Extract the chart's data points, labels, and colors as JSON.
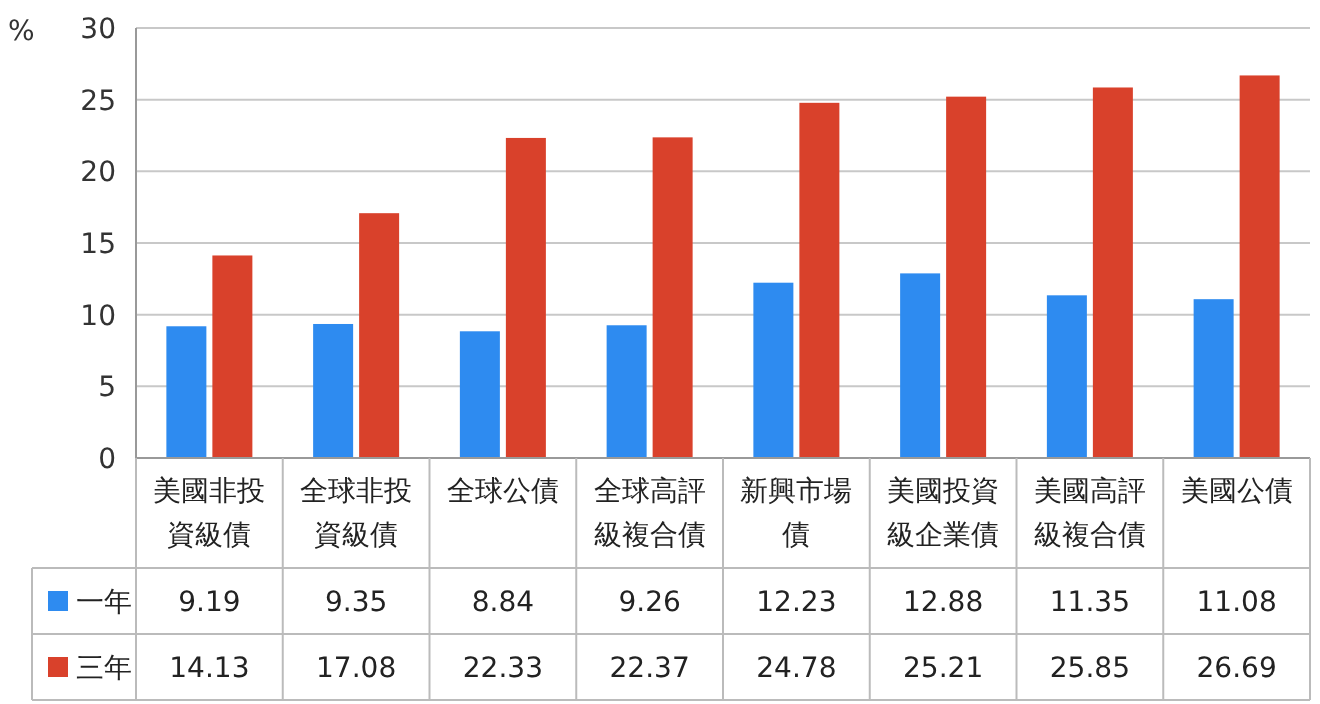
{
  "chart_data": {
    "type": "bar",
    "ylabel": "%",
    "ylim": [
      0,
      30
    ],
    "yticks": [
      0,
      5,
      10,
      15,
      20,
      25,
      30
    ],
    "grid": "y",
    "data_labels": true,
    "legend": "bottom",
    "categories": [
      "美國非投資級債",
      "全球非投資級債",
      "全球公債",
      "全球高評級複合債",
      "新興市場債",
      "美國投資級企業債",
      "美國高評級複合債",
      "美國公債"
    ],
    "series": [
      {
        "name": "一年",
        "color": "#2e8bf0",
        "values": [
          9.19,
          9.35,
          8.84,
          9.26,
          12.23,
          12.88,
          11.35,
          11.08
        ]
      },
      {
        "name": "三年",
        "color": "#d9412b",
        "values": [
          14.13,
          17.08,
          22.33,
          22.37,
          24.78,
          25.21,
          25.85,
          26.69
        ]
      }
    ]
  }
}
